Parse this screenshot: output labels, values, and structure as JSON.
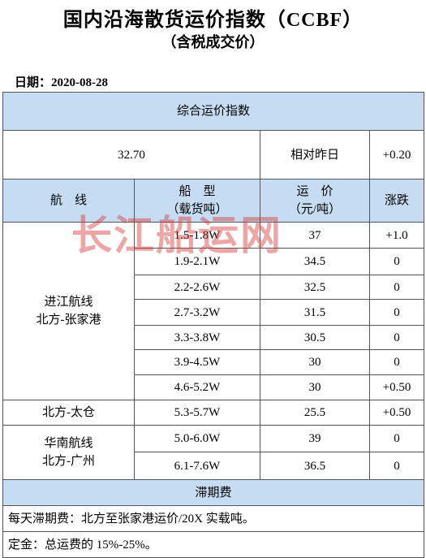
{
  "header": {
    "title": "国内沿海散货运价指数（CCBF）",
    "subtitle": "（含税成交价）"
  },
  "date": "日期：2020-08-28",
  "table": {
    "section_title": "综合运价指数",
    "index_value": "32.70",
    "change_label": "相对昨日",
    "change_value": "+0.20",
    "columns": [
      [
        "航　线"
      ],
      [
        "船　型",
        "（载货吨）"
      ],
      [
        "运　价",
        "（元/吨）"
      ],
      [
        "涨跌"
      ]
    ],
    "groups": [
      {
        "route": [
          "进江航线",
          "北方-张家港"
        ],
        "rows": [
          [
            "1.5-1.8W",
            "37",
            "+1.0"
          ],
          [
            "1.9-2.1W",
            "34.5",
            "0"
          ],
          [
            "2.2-2.6W",
            "32.5",
            "0"
          ],
          [
            "2.7-3.2W",
            "31.5",
            "0"
          ],
          [
            "3.3-3.8W",
            "30.5",
            "0"
          ],
          [
            "3.9-4.5W",
            "30",
            "0"
          ],
          [
            "4.6-5.2W",
            "30",
            "+0.50"
          ]
        ]
      },
      {
        "route": [
          "北方-太仓"
        ],
        "rows": [
          [
            "5.3-5.7W",
            "25.5",
            "+0.50"
          ]
        ]
      },
      {
        "route": [
          "华南航线",
          "北方-广州"
        ],
        "rows": [
          [
            "5.0-6.0W",
            "39",
            "0"
          ],
          [
            "6.1-7.6W",
            "36.5",
            "0"
          ]
        ]
      }
    ]
  },
  "demurrage": {
    "title": "滞期费",
    "notes": [
      "每天滞期费：北方至张家港运价/20X 实载吨。",
      "定金：总运费的 15%-25%。"
    ]
  },
  "watermark": "长江船运网"
}
